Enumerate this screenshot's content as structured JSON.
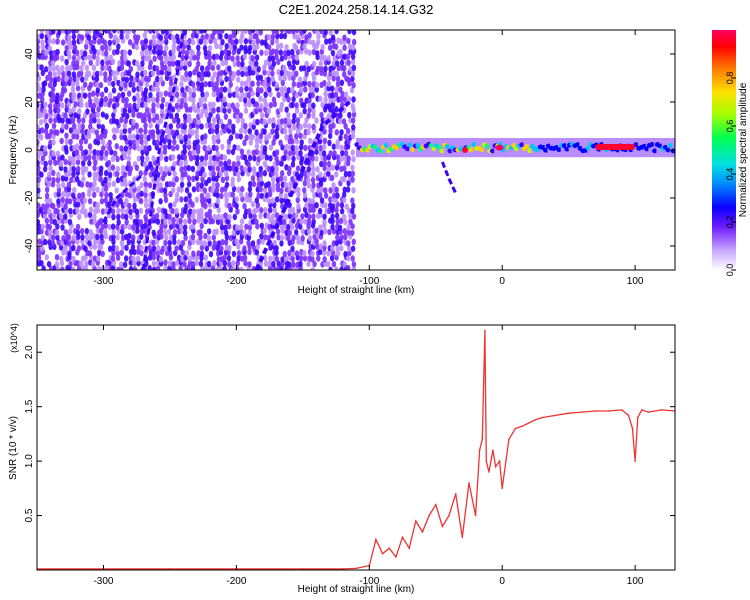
{
  "figure_title": "C2E1.2024.258.14.14.G32",
  "chart_data": [
    {
      "type": "heatmap",
      "xlabel": "Height of straight line (km)",
      "ylabel": "Frequency (Hz)",
      "xlim": [
        -350,
        130
      ],
      "ylim": [
        -50,
        50
      ],
      "x_ticks": [
        -300,
        -200,
        -100,
        0,
        100
      ],
      "y_ticks": [
        -40,
        -20,
        0,
        20,
        40
      ],
      "colorbar": {
        "label": "Normalized spectral amplitude",
        "range": [
          0.0,
          1.0
        ],
        "ticks": [
          0.0,
          0.2,
          0.4,
          0.6,
          0.8
        ],
        "tick_labels": [
          "0.0",
          "0.2",
          "0.4",
          "0.6",
          "0.8"
        ],
        "colormap": [
          "#f2eaff",
          "#b98cff",
          "#7a2cff",
          "#3a00ff",
          "#0000ff",
          "#00c8ff",
          "#00ff7a",
          "#b6ff00",
          "#ffd000",
          "#ff5a00",
          "#ff0030",
          "#ff0060"
        ]
      },
      "features": [
        {
          "description": "broadband noise",
          "x_range": [
            -350,
            -110
          ],
          "level": 0.2
        },
        {
          "description": "tone near 0 Hz",
          "x_range": [
            -110,
            130
          ],
          "y_center": 1.0,
          "peak_x": 90
        }
      ]
    },
    {
      "type": "line",
      "xlabel": "Height of straight line (km)",
      "ylabel": "SNR (10 * v/v)",
      "y_multiplier": "(x10^4)",
      "xlim": [
        -350,
        130
      ],
      "ylim": [
        0,
        2.25
      ],
      "x_ticks": [
        -300,
        -200,
        -100,
        0,
        100
      ],
      "y_ticks": [
        0.5,
        1.0,
        1.5,
        2.0
      ],
      "y_tick_labels": [
        "0.5",
        "1.0",
        "1.5",
        "2.0"
      ],
      "series": [
        {
          "color": "#ee3333",
          "x": [
            -350,
            -300,
            -250,
            -200,
            -150,
            -120,
            -110,
            -100,
            -95,
            -90,
            -85,
            -80,
            -75,
            -70,
            -65,
            -60,
            -55,
            -50,
            -45,
            -40,
            -35,
            -30,
            -25,
            -20,
            -17,
            -15,
            -13,
            -12,
            -10,
            -7,
            -5,
            -2,
            0,
            5,
            10,
            15,
            20,
            25,
            30,
            40,
            50,
            60,
            70,
            80,
            90,
            95,
            98,
            100,
            102,
            105,
            110,
            120,
            130
          ],
          "y": [
            0.01,
            0.01,
            0.01,
            0.01,
            0.01,
            0.01,
            0.015,
            0.04,
            0.28,
            0.15,
            0.2,
            0.12,
            0.3,
            0.2,
            0.45,
            0.35,
            0.5,
            0.6,
            0.4,
            0.5,
            0.7,
            0.3,
            0.8,
            0.5,
            1.1,
            1.2,
            2.2,
            1.0,
            0.9,
            1.1,
            0.95,
            1.0,
            0.75,
            1.2,
            1.3,
            1.32,
            1.35,
            1.38,
            1.4,
            1.42,
            1.44,
            1.45,
            1.46,
            1.46,
            1.47,
            1.42,
            1.3,
            1.0,
            1.4,
            1.47,
            1.45,
            1.47,
            1.46
          ]
        }
      ]
    }
  ]
}
